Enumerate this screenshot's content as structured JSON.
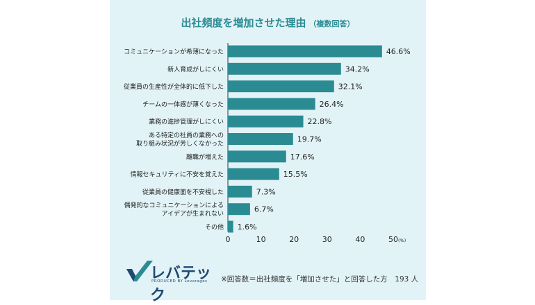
{
  "title": "出社頻度を増加させた理由",
  "subtitle": "（複数回答）",
  "chart_data": {
    "type": "bar",
    "orientation": "horizontal",
    "categories": [
      [
        "コミュニケーションが希薄になった"
      ],
      [
        "新人育成がしにくい"
      ],
      [
        "従業員の生産性が全体的に低下した"
      ],
      [
        "チームの一体感が薄くなった"
      ],
      [
        "業務の進捗管理がしにくい"
      ],
      [
        "ある特定の社員の業務への",
        "取り組み状況が芳しくなかった"
      ],
      [
        "離職が増えた"
      ],
      [
        "情報セキュリティに不安を覚えた"
      ],
      [
        "従業員の健康面を不安視した"
      ],
      [
        "偶発的なコミュニケーションによる",
        "アイデアが生まれない"
      ],
      [
        "その他"
      ]
    ],
    "values": [
      46.6,
      34.2,
      32.1,
      26.4,
      22.8,
      19.7,
      17.6,
      15.5,
      7.3,
      6.7,
      1.6
    ],
    "value_labels": [
      "46.6%",
      "34.2%",
      "32.1%",
      "26.4%",
      "22.8%",
      "19.7%",
      "17.6%",
      "15.5%",
      "7.3%",
      "6.7%",
      "1.6%"
    ],
    "xlim": [
      0,
      50
    ],
    "xticks": [
      "0",
      "10",
      "20",
      "30",
      "40",
      "50"
    ],
    "x_unit": "(%)",
    "bar_color": "#2b8b93",
    "grid": false
  },
  "footer": {
    "note": "※回答数＝出社頻度を「増加させた」と回答した方　193 人"
  },
  "logo": {
    "name": "レバテック",
    "tagline": "PRODUCED BY Leverages"
  }
}
